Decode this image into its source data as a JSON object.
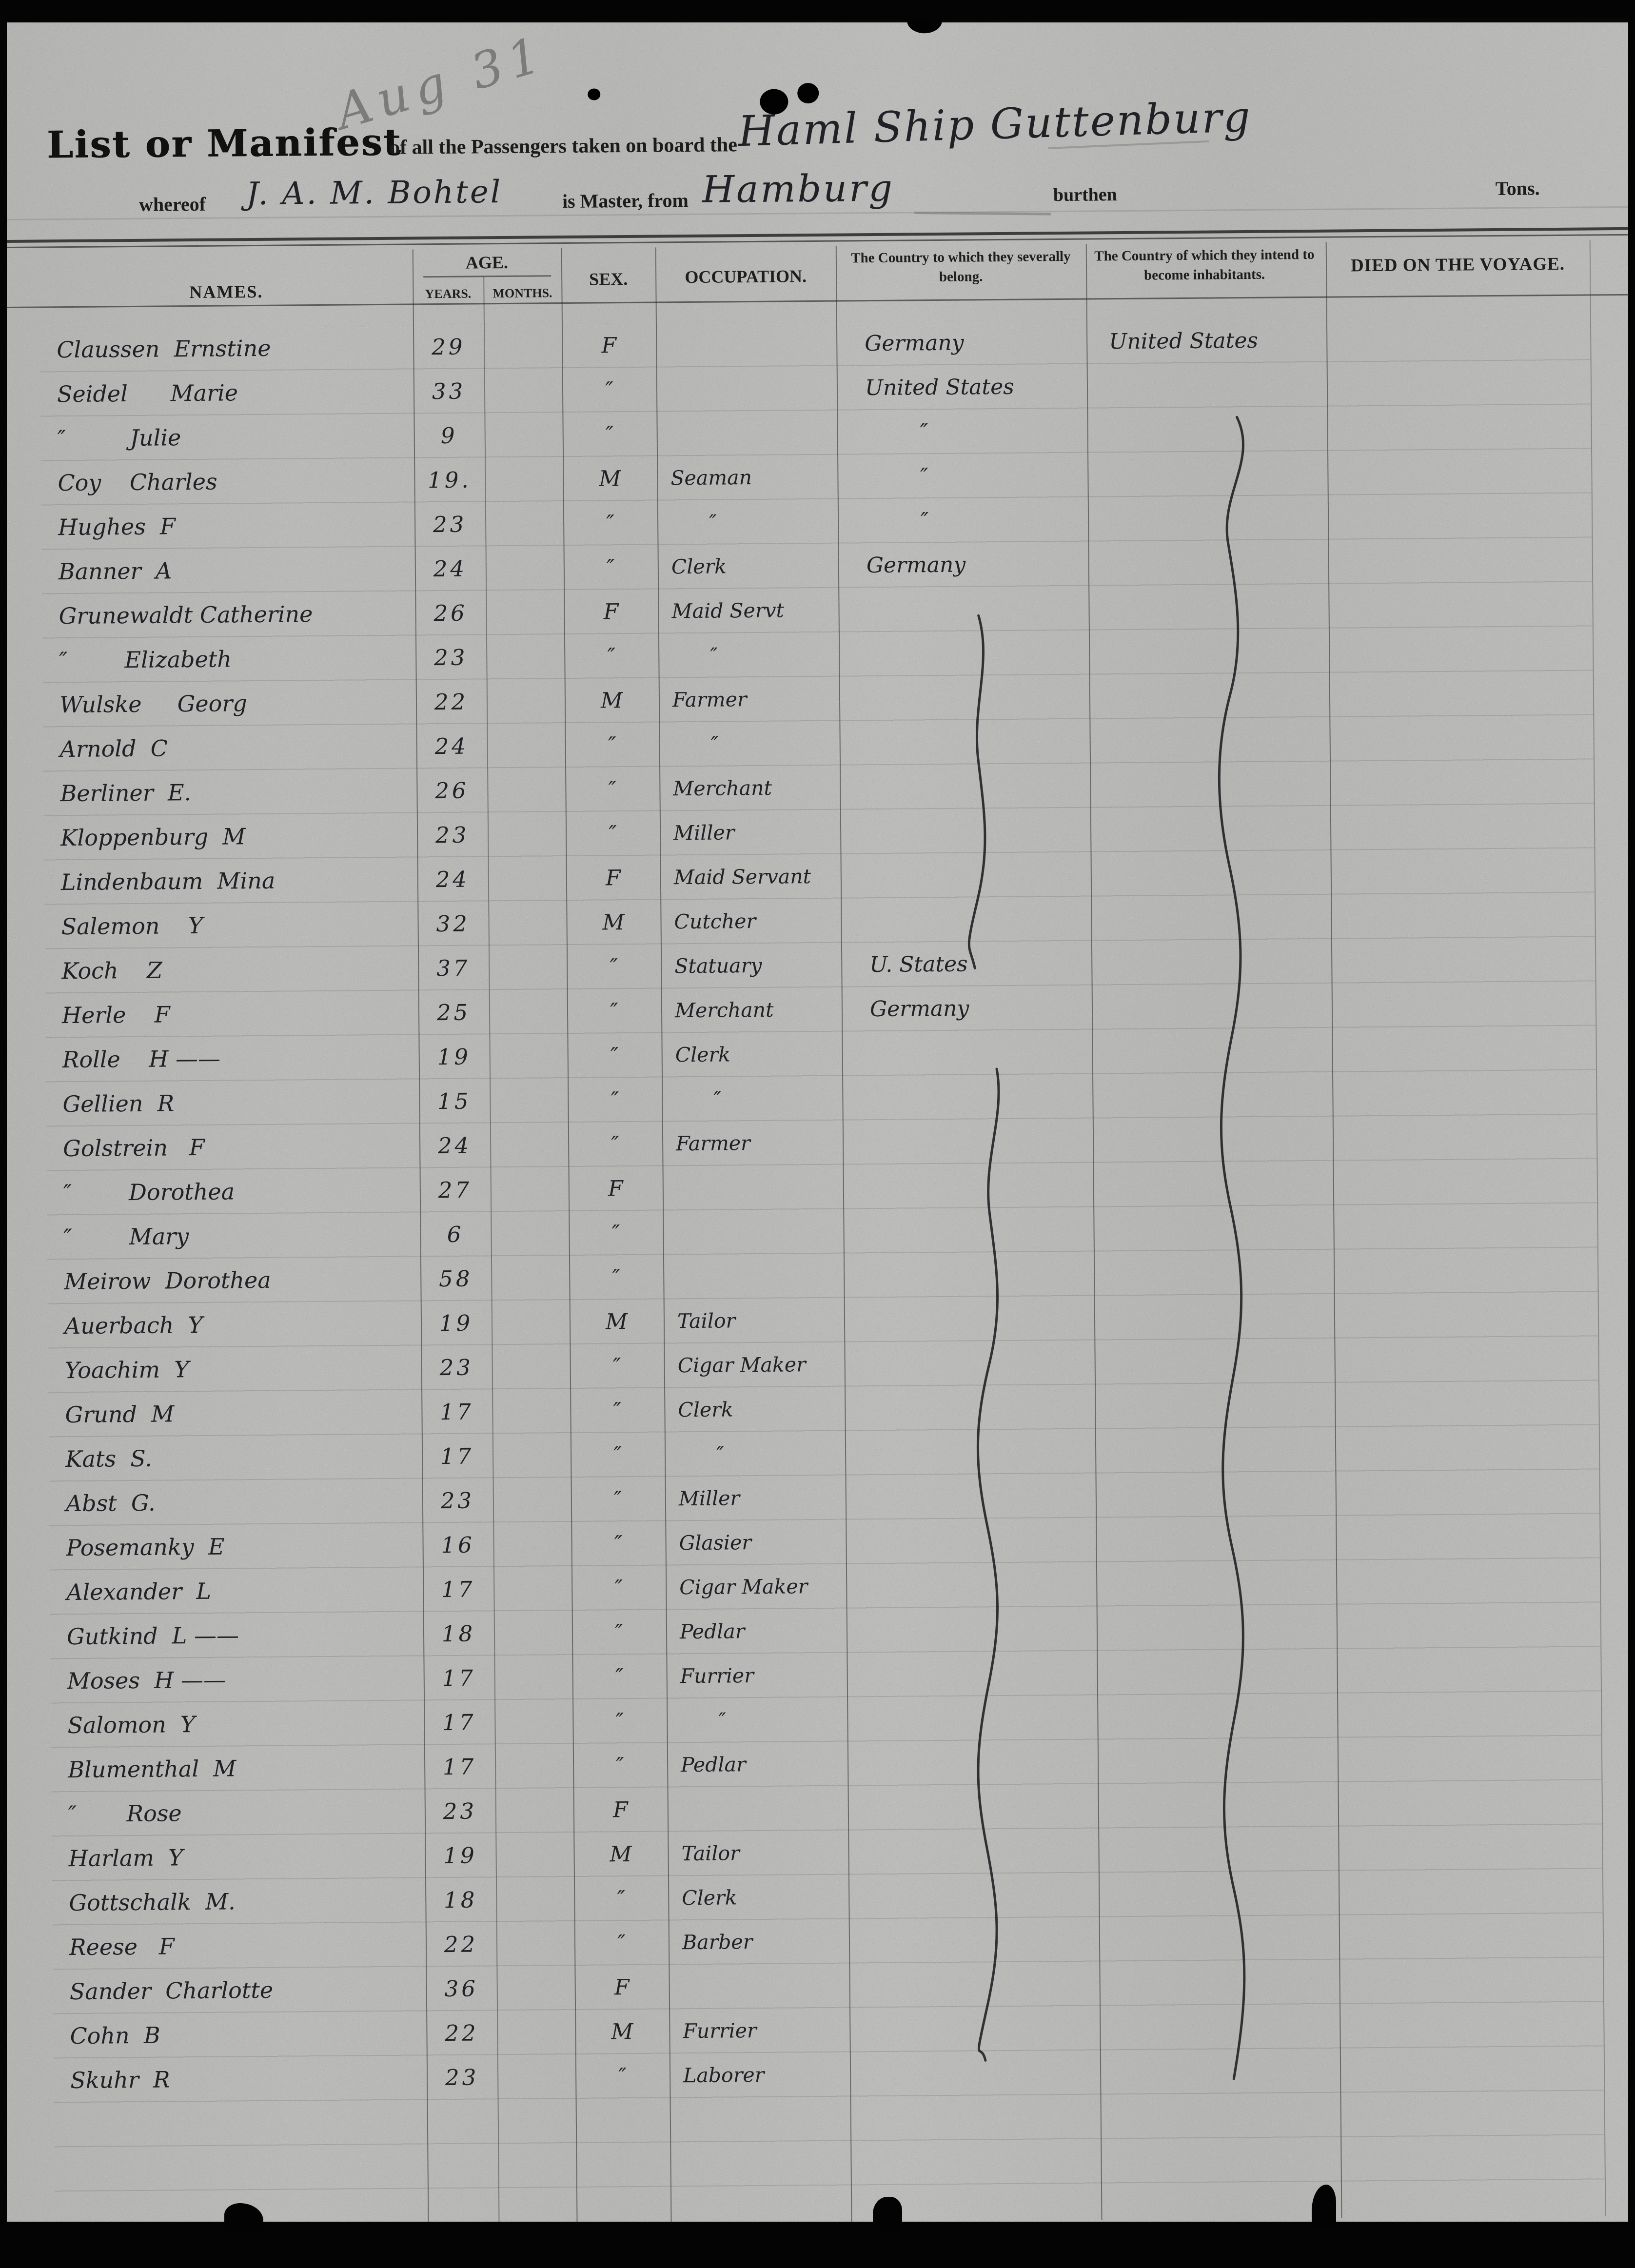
{
  "annotations": {
    "pencil_note": "Aug 31"
  },
  "header": {
    "title": "List or Manifest",
    "subtitle": "of all the Passengers taken on board the",
    "ship_name": "Haml Ship Guttenburg",
    "whereof_label": "whereof",
    "master_name": "J. A. M. Bohtel",
    "master_label": "is Master, from",
    "port": "Hamburg",
    "burthen_label": "burthen",
    "tons_label": "Tons."
  },
  "table": {
    "columns": {
      "names": "NAMES.",
      "age": "AGE.",
      "years": "YEARS.",
      "months": "MONTHS.",
      "sex": "SEX.",
      "occupation": "OCCUPATION.",
      "belong": "The Country to which they severally belong.",
      "intend": "The Country of which they intend to become inhabitants.",
      "died": "DIED ON THE VOYAGE."
    },
    "rows": [
      {
        "name": "Claussen  Ernstine",
        "years": "29",
        "months": "",
        "sex": "F",
        "occupation": "",
        "belong": "Germany",
        "intend": "United States",
        "died": ""
      },
      {
        "name": "Seidel      Marie",
        "years": "33",
        "months": "",
        "sex": "″",
        "occupation": "",
        "belong": "United States",
        "intend": "",
        "died": ""
      },
      {
        "name": "″         Julie",
        "years": "9",
        "months": "",
        "sex": "″",
        "occupation": "",
        "belong": "        ″",
        "intend": "",
        "died": ""
      },
      {
        "name": "Coy    Charles",
        "years": "19.",
        "months": "",
        "sex": "M",
        "occupation": "Seaman",
        "belong": "        ″",
        "intend": "",
        "died": ""
      },
      {
        "name": "Hughes  F",
        "years": "23",
        "months": "",
        "sex": "″",
        "occupation": "      ″",
        "belong": "        ″",
        "intend": "",
        "died": ""
      },
      {
        "name": "Banner  A",
        "years": "24",
        "months": "",
        "sex": "″",
        "occupation": "Clerk",
        "belong": "Germany",
        "intend": "",
        "died": ""
      },
      {
        "name": "Grunewaldt Catherine",
        "years": "26",
        "months": "",
        "sex": "F",
        "occupation": "Maid Servt",
        "belong": "",
        "intend": "",
        "died": ""
      },
      {
        "name": "″        Elizabeth",
        "years": "23",
        "months": "",
        "sex": "″",
        "occupation": "      ″",
        "belong": "",
        "intend": "",
        "died": ""
      },
      {
        "name": "Wulske     Georg",
        "years": "22",
        "months": "",
        "sex": "M",
        "occupation": "Farmer",
        "belong": "",
        "intend": "",
        "died": ""
      },
      {
        "name": "Arnold  C",
        "years": "24",
        "months": "",
        "sex": "″",
        "occupation": "      ″",
        "belong": "",
        "intend": "",
        "died": ""
      },
      {
        "name": "Berliner  E.",
        "years": "26",
        "months": "",
        "sex": "″",
        "occupation": "Merchant",
        "belong": "",
        "intend": "",
        "died": ""
      },
      {
        "name": "Kloppenburg  M",
        "years": "23",
        "months": "",
        "sex": "″",
        "occupation": "Miller",
        "belong": "",
        "intend": "",
        "died": ""
      },
      {
        "name": "Lindenbaum  Mina",
        "years": "24",
        "months": "",
        "sex": "F",
        "occupation": "Maid Servant",
        "belong": "",
        "intend": "",
        "died": ""
      },
      {
        "name": "Salemon    Y",
        "years": "32",
        "months": "",
        "sex": "M",
        "occupation": "Cutcher",
        "belong": "",
        "intend": "",
        "died": ""
      },
      {
        "name": "Koch    Z",
        "years": "37",
        "months": "",
        "sex": "″",
        "occupation": "Statuary",
        "belong": "U. States",
        "intend": "",
        "died": ""
      },
      {
        "name": "Herle    F",
        "years": "25",
        "months": "",
        "sex": "″",
        "occupation": "Merchant",
        "belong": "Germany",
        "intend": "",
        "died": ""
      },
      {
        "name": "Rolle    H ——",
        "years": "19",
        "months": "",
        "sex": "″",
        "occupation": "Clerk",
        "belong": "",
        "intend": "",
        "died": ""
      },
      {
        "name": "Gellien  R",
        "years": "15",
        "months": "",
        "sex": "″",
        "occupation": "      ″",
        "belong": "",
        "intend": "",
        "died": ""
      },
      {
        "name": "Golstrein   F",
        "years": "24",
        "months": "",
        "sex": "″",
        "occupation": "Farmer",
        "belong": "",
        "intend": "",
        "died": ""
      },
      {
        "name": "″        Dorothea",
        "years": "27",
        "months": "",
        "sex": "F",
        "occupation": "",
        "belong": "",
        "intend": "",
        "died": ""
      },
      {
        "name": "″        Mary",
        "years": "6",
        "months": "",
        "sex": "″",
        "occupation": "",
        "belong": "",
        "intend": "",
        "died": ""
      },
      {
        "name": "Meirow  Dorothea",
        "years": "58",
        "months": "",
        "sex": "″",
        "occupation": "",
        "belong": "",
        "intend": "",
        "died": ""
      },
      {
        "name": "Auerbach  Y",
        "years": "19",
        "months": "",
        "sex": "M",
        "occupation": "Tailor",
        "belong": "",
        "intend": "",
        "died": ""
      },
      {
        "name": "Yoachim  Y",
        "years": "23",
        "months": "",
        "sex": "″",
        "occupation": "Cigar Maker",
        "belong": "",
        "intend": "",
        "died": ""
      },
      {
        "name": "Grund  M",
        "years": "17",
        "months": "",
        "sex": "″",
        "occupation": "Clerk",
        "belong": "",
        "intend": "",
        "died": ""
      },
      {
        "name": "Kats  S.",
        "years": "17",
        "months": "",
        "sex": "″",
        "occupation": "      ″",
        "belong": "",
        "intend": "",
        "died": ""
      },
      {
        "name": "Abst  G.",
        "years": "23",
        "months": "",
        "sex": "″",
        "occupation": "Miller",
        "belong": "",
        "intend": "",
        "died": ""
      },
      {
        "name": "Posemanky  E",
        "years": "16",
        "months": "",
        "sex": "″",
        "occupation": "Glasier",
        "belong": "",
        "intend": "",
        "died": ""
      },
      {
        "name": "Alexander  L",
        "years": "17",
        "months": "",
        "sex": "″",
        "occupation": "Cigar Maker",
        "belong": "",
        "intend": "",
        "died": ""
      },
      {
        "name": "Gutkind  L ——",
        "years": "18",
        "months": "",
        "sex": "″",
        "occupation": "Pedlar",
        "belong": "",
        "intend": "",
        "died": ""
      },
      {
        "name": "Moses  H ——",
        "years": "17",
        "months": "",
        "sex": "″",
        "occupation": "Furrier",
        "belong": "",
        "intend": "",
        "died": ""
      },
      {
        "name": "Salomon  Y",
        "years": "17",
        "months": "",
        "sex": "″",
        "occupation": "      ″",
        "belong": "",
        "intend": "",
        "died": ""
      },
      {
        "name": "Blumenthal  M",
        "years": "17",
        "months": "",
        "sex": "″",
        "occupation": "Pedlar",
        "belong": "",
        "intend": "",
        "died": ""
      },
      {
        "name": "″       Rose",
        "years": "23",
        "months": "",
        "sex": "F",
        "occupation": "",
        "belong": "",
        "intend": "",
        "died": ""
      },
      {
        "name": "Harlam  Y",
        "years": "19",
        "months": "",
        "sex": "M",
        "occupation": "Tailor",
        "belong": "",
        "intend": "",
        "died": ""
      },
      {
        "name": "Gottschalk  M.",
        "years": "18",
        "months": "",
        "sex": "″",
        "occupation": "Clerk",
        "belong": "",
        "intend": "",
        "died": ""
      },
      {
        "name": "Reese   F",
        "years": "22",
        "months": "",
        "sex": "″",
        "occupation": "Barber",
        "belong": "",
        "intend": "",
        "died": ""
      },
      {
        "name": "Sander  Charlotte",
        "years": "36",
        "months": "",
        "sex": "F",
        "occupation": "",
        "belong": "",
        "intend": "",
        "died": ""
      },
      {
        "name": "Cohn  B",
        "years": "22",
        "months": "",
        "sex": "M",
        "occupation": "Furrier",
        "belong": "",
        "intend": "",
        "died": ""
      },
      {
        "name": "Skuhr  R",
        "years": "23",
        "months": "",
        "sex": "″",
        "occupation": "Laborer",
        "belong": "",
        "intend": "",
        "died": ""
      }
    ]
  },
  "colors": {
    "paper": "#d5d4d1",
    "ink": "#26262c",
    "printed_text": "#222120",
    "pencil": "#8f8f8d",
    "scan_background": "#050505"
  }
}
